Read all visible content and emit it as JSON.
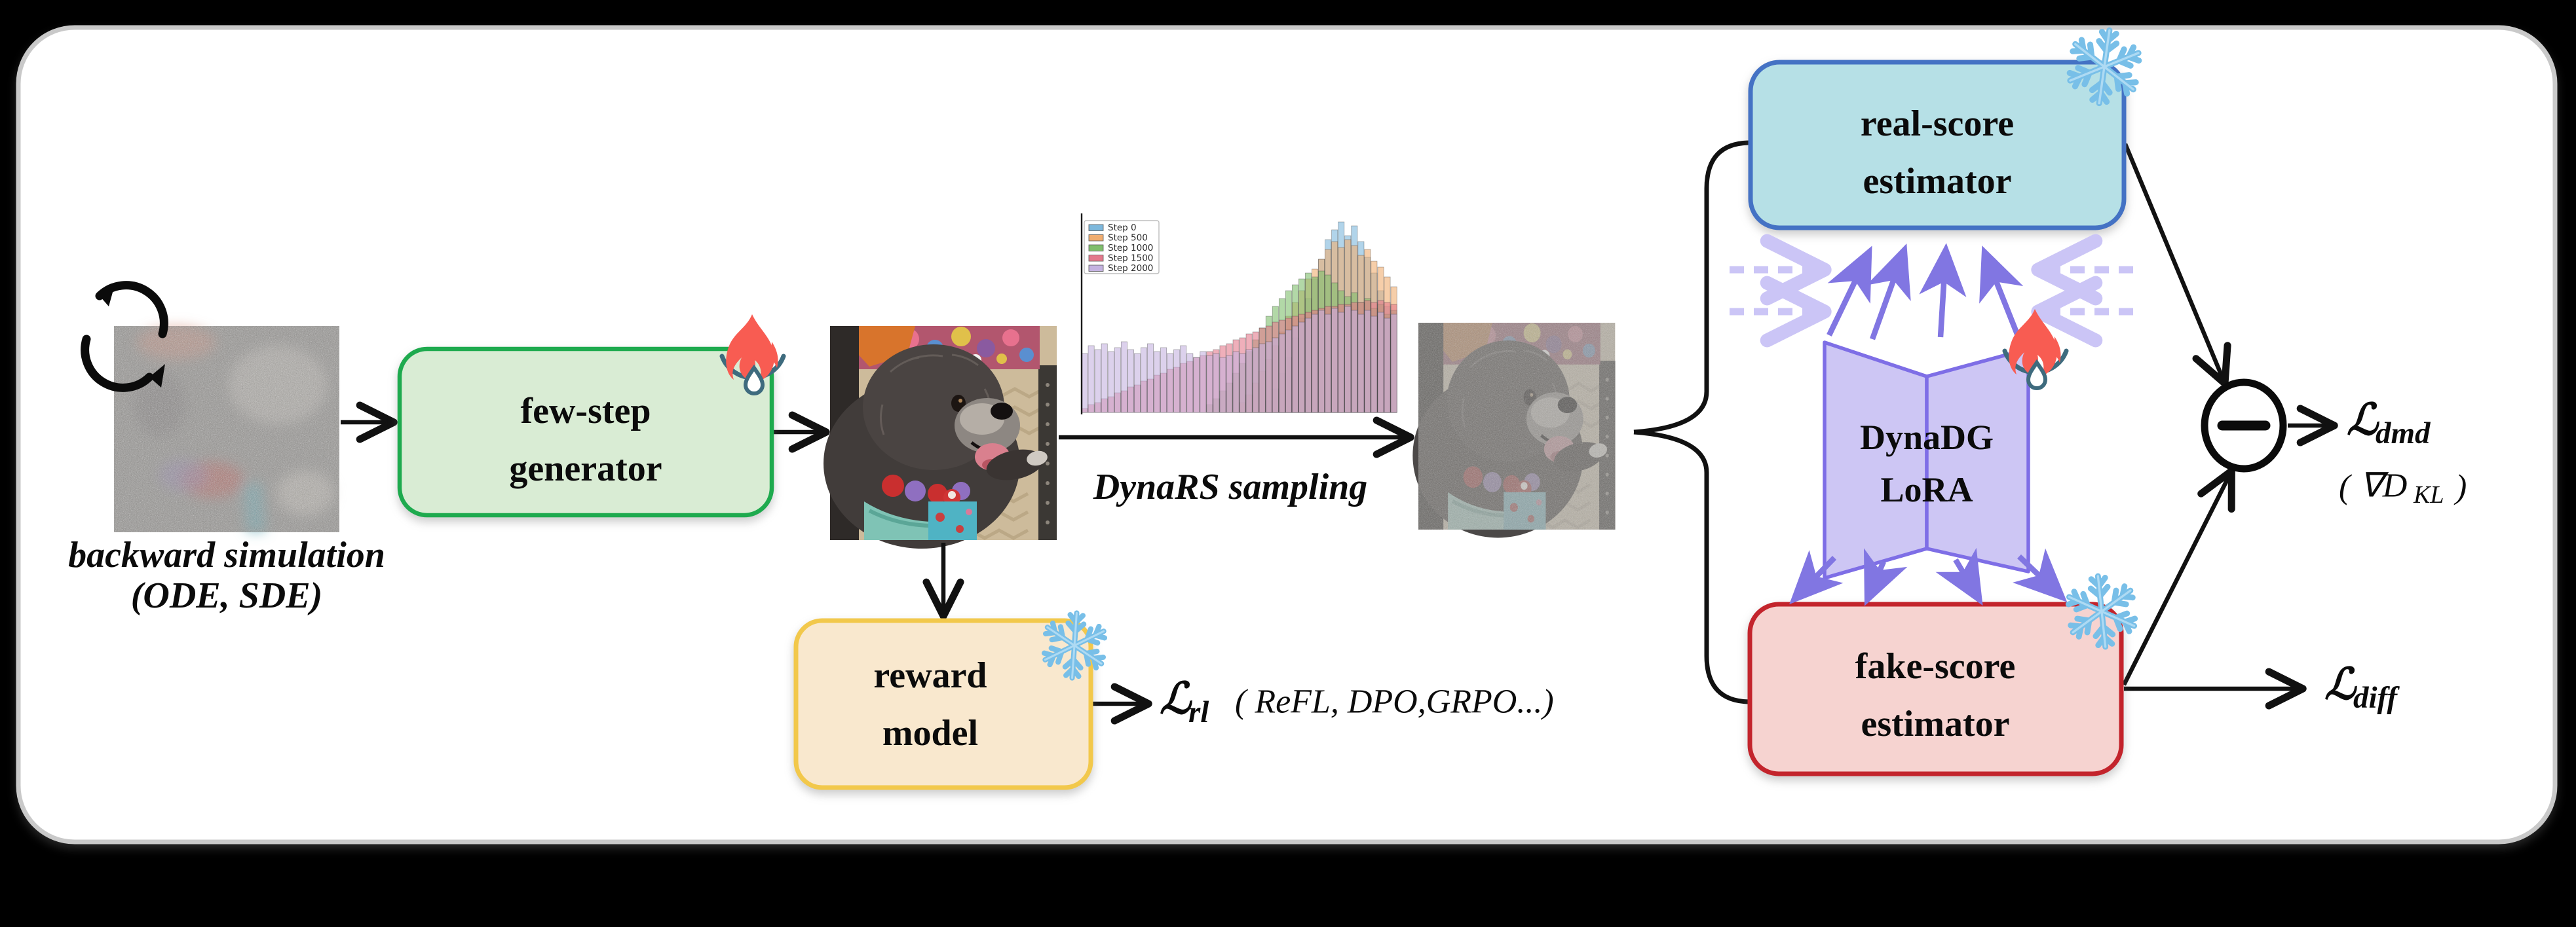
{
  "panel": {
    "bg": "#ffffff",
    "border": "#c9c9c9",
    "outer_bg": "#000000"
  },
  "stages": {
    "backward_sim": {
      "caption_line1": "backward simulation",
      "caption_line2": "(ODE, SDE)"
    },
    "generator": {
      "label_line1": "few-step",
      "label_line2": "generator",
      "fill": "#d9ecd4",
      "border": "#1eaa4e",
      "status": "trainable"
    },
    "sampling": {
      "label": "DynaRS sampling"
    },
    "real_score": {
      "label_line1": "real-score",
      "label_line2": "estimator",
      "fill": "#b6e0e6",
      "border": "#4472c4",
      "status": "frozen"
    },
    "fake_score": {
      "label_line1": "fake-score",
      "label_line2": "estimator",
      "fill": "#f6d3d0",
      "border": "#c3242c",
      "status": "frozen"
    },
    "lora": {
      "label_line1": "DynaDG",
      "label_line2": "LoRA",
      "fill": "#cdc6f4",
      "border": "#7e6ee6",
      "status": "trainable"
    },
    "reward": {
      "label_line1": "reward",
      "label_line2": "model",
      "fill": "#f9e8ce",
      "border": "#f2c84b",
      "status": "frozen"
    }
  },
  "losses": {
    "dmd": {
      "symbol": "ℒ",
      "sub": "dmd",
      "note_open": "(",
      "note_main": "∇D",
      "note_sub": "KL",
      "note_close": ")"
    },
    "diff": {
      "symbol": "ℒ",
      "sub": "diff"
    },
    "rl": {
      "symbol": "ℒ",
      "sub": "rl",
      "note": "( ReFL, DPO,GRPO...)"
    }
  },
  "operator": {
    "minus": "−"
  },
  "icons": {
    "cycle": "cycle-arrows",
    "flame": "fire-trainable",
    "snowflake": "snowflake-frozen"
  },
  "arrow_colors": {
    "black": "#111111",
    "purple": "#8176e2",
    "lavender": "#cbc5f6"
  },
  "chart_data": {
    "type": "histogram",
    "title": "",
    "xlabel": "",
    "ylabel": "",
    "legend_position": "upper left",
    "grid": false,
    "bins": 48,
    "ylim": [
      0,
      1
    ],
    "opacity": 0.6,
    "series": [
      {
        "name": "Step 0",
        "color": "#7db8dc",
        "values": [
          0,
          0,
          0,
          0,
          0,
          0,
          0,
          0,
          0,
          0,
          0,
          0,
          0,
          0,
          0,
          0,
          0,
          0,
          0,
          0,
          0,
          0,
          0,
          0,
          0,
          0,
          0,
          0,
          0.06,
          0.12,
          0.2,
          0.28,
          0.38,
          0.48,
          0.58,
          0.68,
          0.78,
          0.88,
          0.93,
          0.97,
          0.9,
          0.95,
          0.87,
          0.79,
          0.71,
          0.62,
          0.54,
          0.47
        ]
      },
      {
        "name": "Step 500",
        "color": "#f0ad70",
        "values": [
          0,
          0,
          0,
          0,
          0,
          0,
          0,
          0,
          0,
          0,
          0,
          0,
          0,
          0,
          0,
          0,
          0,
          0,
          0,
          0,
          0,
          0,
          0,
          0,
          0.05,
          0.09,
          0.15,
          0.21,
          0.27,
          0.34,
          0.41,
          0.49,
          0.56,
          0.62,
          0.68,
          0.73,
          0.78,
          0.83,
          0.87,
          0.84,
          0.88,
          0.85,
          0.8,
          0.83,
          0.77,
          0.74,
          0.69,
          0.64
        ]
      },
      {
        "name": "Step 1000",
        "color": "#7fbe6c",
        "values": [
          0,
          0,
          0,
          0,
          0,
          0,
          0,
          0,
          0,
          0,
          0,
          0,
          0,
          0,
          0,
          0,
          0,
          0,
          0,
          0.04,
          0.07,
          0.11,
          0.15,
          0.2,
          0.25,
          0.31,
          0.37,
          0.43,
          0.49,
          0.54,
          0.58,
          0.62,
          0.65,
          0.68,
          0.71,
          0.69,
          0.72,
          0.7,
          0.66,
          0.62,
          0.59,
          0.61,
          0.56,
          0.58,
          0.53,
          0.55,
          0.5,
          0.52
        ]
      },
      {
        "name": "Step 1500",
        "color": "#e4798c",
        "values": [
          0.02,
          0.04,
          0.05,
          0.07,
          0.08,
          0.1,
          0.11,
          0.13,
          0.14,
          0.16,
          0.17,
          0.19,
          0.2,
          0.22,
          0.23,
          0.25,
          0.26,
          0.28,
          0.29,
          0.31,
          0.32,
          0.34,
          0.35,
          0.37,
          0.38,
          0.4,
          0.41,
          0.43,
          0.44,
          0.46,
          0.47,
          0.48,
          0.49,
          0.5,
          0.51,
          0.52,
          0.53,
          0.54,
          0.54,
          0.55,
          0.55,
          0.56,
          0.56,
          0.57,
          0.56,
          0.57,
          0.56,
          0.55
        ]
      },
      {
        "name": "Step 2000",
        "color": "#c4b2e0",
        "values": [
          0.3,
          0.34,
          0.32,
          0.35,
          0.31,
          0.33,
          0.36,
          0.32,
          0.3,
          0.33,
          0.35,
          0.31,
          0.33,
          0.3,
          0.32,
          0.34,
          0.3,
          0.28,
          0.31,
          0.29,
          0.3,
          0.28,
          0.29,
          0.31,
          0.3,
          0.32,
          0.33,
          0.35,
          0.36,
          0.38,
          0.4,
          0.42,
          0.44,
          0.46,
          0.48,
          0.5,
          0.52,
          0.5,
          0.53,
          0.51,
          0.54,
          0.52,
          0.5,
          0.52,
          0.49,
          0.51,
          0.48,
          0.5
        ]
      }
    ]
  }
}
